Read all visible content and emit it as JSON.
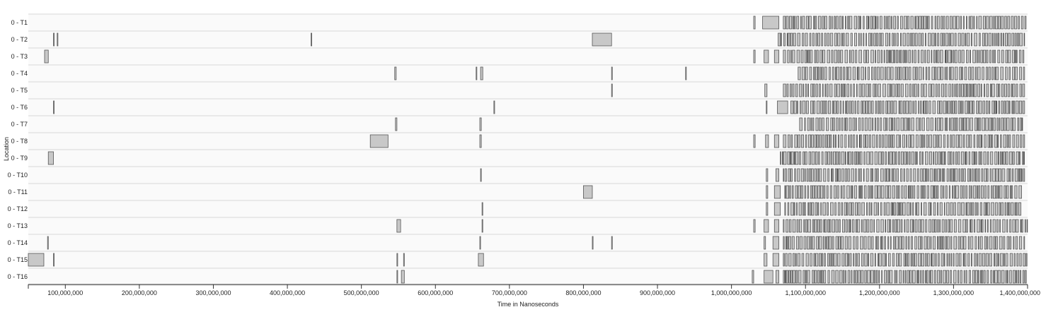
{
  "chart_data": {
    "type": "timeline",
    "xlabel": "Time in Nanoseconds",
    "ylabel": "Location",
    "xlim": [
      50000000,
      1400000000
    ],
    "x_ticks": [
      100000000,
      200000000,
      300000000,
      400000000,
      500000000,
      600000000,
      700000000,
      800000000,
      900000000,
      1000000000,
      1100000000,
      1200000000,
      1300000000,
      1400000000
    ],
    "x_tick_labels": [
      "100,000,000",
      "200,000,000",
      "300,000,000",
      "400,000,000",
      "500,000,000",
      "600,000,000",
      "700,000,000",
      "800,000,000",
      "900,000,000",
      "1,000,000,000",
      "1,100,000,000",
      "1,200,000,000",
      "1,300,000,000",
      "1,400,000,000"
    ],
    "lanes": [
      {
        "name": "0 - T1",
        "events": [
          [
            1030000000,
            1032000000
          ],
          [
            1042000000,
            1064000000
          ]
        ],
        "dense_start": 1070000000,
        "dense_end": 1398000000
      },
      {
        "name": "0 - T2",
        "events": [
          [
            84000000,
            85000000
          ],
          [
            89000000,
            90000000
          ],
          [
            432000000,
            433000000
          ],
          [
            812000000,
            838000000
          ]
        ],
        "dense_start": 1063000000,
        "dense_end": 1396000000
      },
      {
        "name": "0 - T3",
        "events": [
          [
            72000000,
            77000000
          ],
          [
            1030000000,
            1032000000
          ],
          [
            1044000000,
            1050000000
          ],
          [
            1058000000,
            1064000000
          ]
        ],
        "dense_start": 1070000000,
        "dense_end": 1396000000
      },
      {
        "name": "0 - T4",
        "events": [
          [
            545000000,
            547000000
          ],
          [
            655000000,
            656000000
          ],
          [
            661000000,
            664000000
          ],
          [
            838000000,
            839000000
          ],
          [
            938000000,
            939000000
          ]
        ],
        "dense_start": 1090000000,
        "dense_end": 1396000000
      },
      {
        "name": "0 - T5",
        "events": [
          [
            838000000,
            839000000
          ],
          [
            1045000000,
            1048000000
          ]
        ],
        "dense_start": 1070000000,
        "dense_end": 1396000000
      },
      {
        "name": "0 - T6",
        "events": [
          [
            84000000,
            85000000
          ],
          [
            679000000,
            680000000
          ],
          [
            1047000000,
            1048000000
          ],
          [
            1062000000,
            1076000000
          ]
        ],
        "dense_start": 1080000000,
        "dense_end": 1396000000
      },
      {
        "name": "0 - T7",
        "events": [
          [
            546000000,
            548000000
          ],
          [
            660000000,
            662000000
          ]
        ],
        "dense_start": 1092000000,
        "dense_end": 1393000000
      },
      {
        "name": "0 - T8",
        "events": [
          [
            512000000,
            536000000
          ],
          [
            660000000,
            662000000
          ],
          [
            1030000000,
            1032000000
          ],
          [
            1046000000,
            1050000000
          ],
          [
            1058000000,
            1064000000
          ]
        ],
        "dense_start": 1070000000,
        "dense_end": 1396000000
      },
      {
        "name": "0 - T9",
        "events": [
          [
            77000000,
            84000000
          ]
        ],
        "dense_start": 1066000000,
        "dense_end": 1396000000
      },
      {
        "name": "0 - T10",
        "events": [
          [
            661000000,
            662000000
          ],
          [
            1047000000,
            1049000000
          ],
          [
            1060000000,
            1064000000
          ]
        ],
        "dense_start": 1070000000,
        "dense_end": 1396000000
      },
      {
        "name": "0 - T11",
        "events": [
          [
            800000000,
            812000000
          ],
          [
            1047000000,
            1049000000
          ],
          [
            1058000000,
            1066000000
          ]
        ],
        "dense_start": 1072000000,
        "dense_end": 1393000000
      },
      {
        "name": "0 - T12",
        "events": [
          [
            663000000,
            664000000
          ],
          [
            1047000000,
            1049000000
          ],
          [
            1058000000,
            1066000000
          ]
        ],
        "dense_start": 1072000000,
        "dense_end": 1393000000
      },
      {
        "name": "0 - T13",
        "events": [
          [
            548000000,
            553000000
          ],
          [
            663000000,
            664000000
          ],
          [
            1030000000,
            1032000000
          ],
          [
            1044000000,
            1050000000
          ],
          [
            1058000000,
            1064000000
          ]
        ],
        "dense_start": 1070000000,
        "dense_end": 1400000000
      },
      {
        "name": "0 - T14",
        "events": [
          [
            76000000,
            77000000
          ],
          [
            660000000,
            661000000
          ],
          [
            812000000,
            813000000
          ],
          [
            838000000,
            839000000
          ],
          [
            1044000000,
            1046000000
          ],
          [
            1056000000,
            1064000000
          ]
        ],
        "dense_start": 1070000000,
        "dense_end": 1396000000
      },
      {
        "name": "0 - T15",
        "events": [
          [
            50000000,
            71000000
          ],
          [
            84000000,
            85000000
          ],
          [
            548000000,
            549000000
          ],
          [
            557000000,
            558000000
          ],
          [
            658000000,
            665000000
          ],
          [
            1044000000,
            1048000000
          ],
          [
            1056000000,
            1064000000
          ]
        ],
        "dense_start": 1070000000,
        "dense_end": 1400000000
      },
      {
        "name": "0 - T16",
        "events": [
          [
            548000000,
            549000000
          ],
          [
            554000000,
            558000000
          ],
          [
            1028000000,
            1030000000
          ],
          [
            1044000000,
            1056000000
          ],
          [
            1060000000,
            1064000000
          ]
        ],
        "dense_start": 1070000000,
        "dense_end": 1400000000
      }
    ]
  }
}
